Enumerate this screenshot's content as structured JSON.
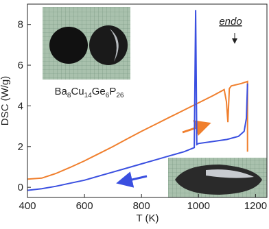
{
  "chart_data": {
    "type": "line",
    "xlabel": "T (K)",
    "ylabel": "DSC (W/g)",
    "xlim": [
      400,
      1240
    ],
    "ylim": [
      -0.5,
      9
    ],
    "xticks": [
      400,
      600,
      800,
      1000,
      1200
    ],
    "yticks": [
      0,
      2,
      4,
      6,
      8
    ],
    "annotation": "endo",
    "formula": [
      "Ba",
      "8",
      "Cu",
      "14",
      "Ge",
      "6",
      "P",
      "26"
    ],
    "series": [
      {
        "color": "#f07f2d",
        "x": [
          400,
          450,
          500,
          550,
          600,
          650,
          700,
          750,
          800,
          850,
          900,
          950,
          1000,
          1050,
          1090,
          1098,
          1103,
          1108,
          1115,
          1150,
          1172,
          1172
        ],
        "values": [
          0.4,
          0.45,
          0.68,
          0.98,
          1.3,
          1.65,
          2.0,
          2.38,
          2.75,
          3.1,
          3.45,
          3.8,
          4.15,
          4.5,
          4.8,
          4.2,
          3.2,
          4.85,
          4.98,
          5.1,
          5.2,
          1.75
        ]
      },
      {
        "color": "#3a4fe0",
        "x": [
          400,
          450,
          500,
          550,
          600,
          650,
          700,
          750,
          800,
          850,
          900,
          950,
          985,
          990,
          994,
          1000,
          1050,
          1100,
          1140,
          1160,
          1168,
          1172
        ],
        "values": [
          -0.15,
          -0.07,
          0.05,
          0.2,
          0.35,
          0.55,
          0.75,
          0.95,
          1.15,
          1.35,
          1.55,
          1.75,
          1.95,
          8.7,
          2.1,
          2.15,
          2.25,
          2.35,
          2.5,
          2.75,
          3.4,
          5.1
        ]
      }
    ]
  }
}
